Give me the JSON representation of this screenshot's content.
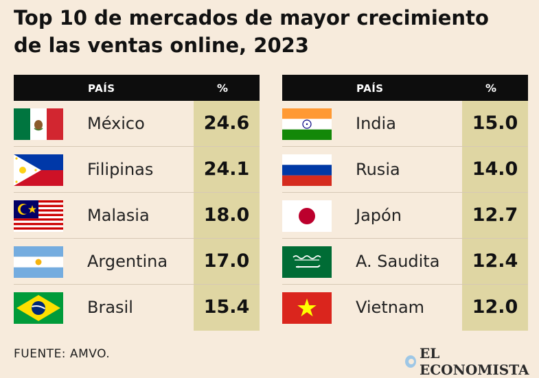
{
  "title": {
    "line1": "Top 10 de mercados de mayor crecimiento",
    "line2": "de las ventas online, 2023"
  },
  "headers": {
    "country": "PAÍS",
    "pct": "%"
  },
  "chart_data": {
    "type": "table",
    "title": "Top 10 de mercados de mayor crecimiento de las ventas online, 2023",
    "columns": [
      "PAÍS",
      "%"
    ],
    "left": [
      {
        "country": "México",
        "value": "24.6",
        "flag": "mexico-flag-icon"
      },
      {
        "country": "Filipinas",
        "value": "24.1",
        "flag": "philippines-flag-icon"
      },
      {
        "country": "Malasia",
        "value": "18.0",
        "flag": "malaysia-flag-icon"
      },
      {
        "country": "Argentina",
        "value": "17.0",
        "flag": "argentina-flag-icon"
      },
      {
        "country": "Brasil",
        "value": "15.4",
        "flag": "brazil-flag-icon"
      }
    ],
    "right": [
      {
        "country": "India",
        "value": "15.0",
        "flag": "india-flag-icon"
      },
      {
        "country": "Rusia",
        "value": "14.0",
        "flag": "russia-flag-icon"
      },
      {
        "country": "Japón",
        "value": "12.7",
        "flag": "japan-flag-icon"
      },
      {
        "country": "A. Saudita",
        "value": "12.4",
        "flag": "saudi-arabia-flag-icon"
      },
      {
        "country": "Vietnam",
        "value": "12.0",
        "flag": "vietnam-flag-icon"
      }
    ]
  },
  "footer": {
    "source": "FUENTE: AMVO.",
    "brand": "EL ECONOMISTA"
  },
  "colors": {
    "background": "#f7ebdc",
    "header": "#0d0d0d",
    "value_column": "#dfd6a3",
    "brand_dot": "#9ec7e6"
  }
}
